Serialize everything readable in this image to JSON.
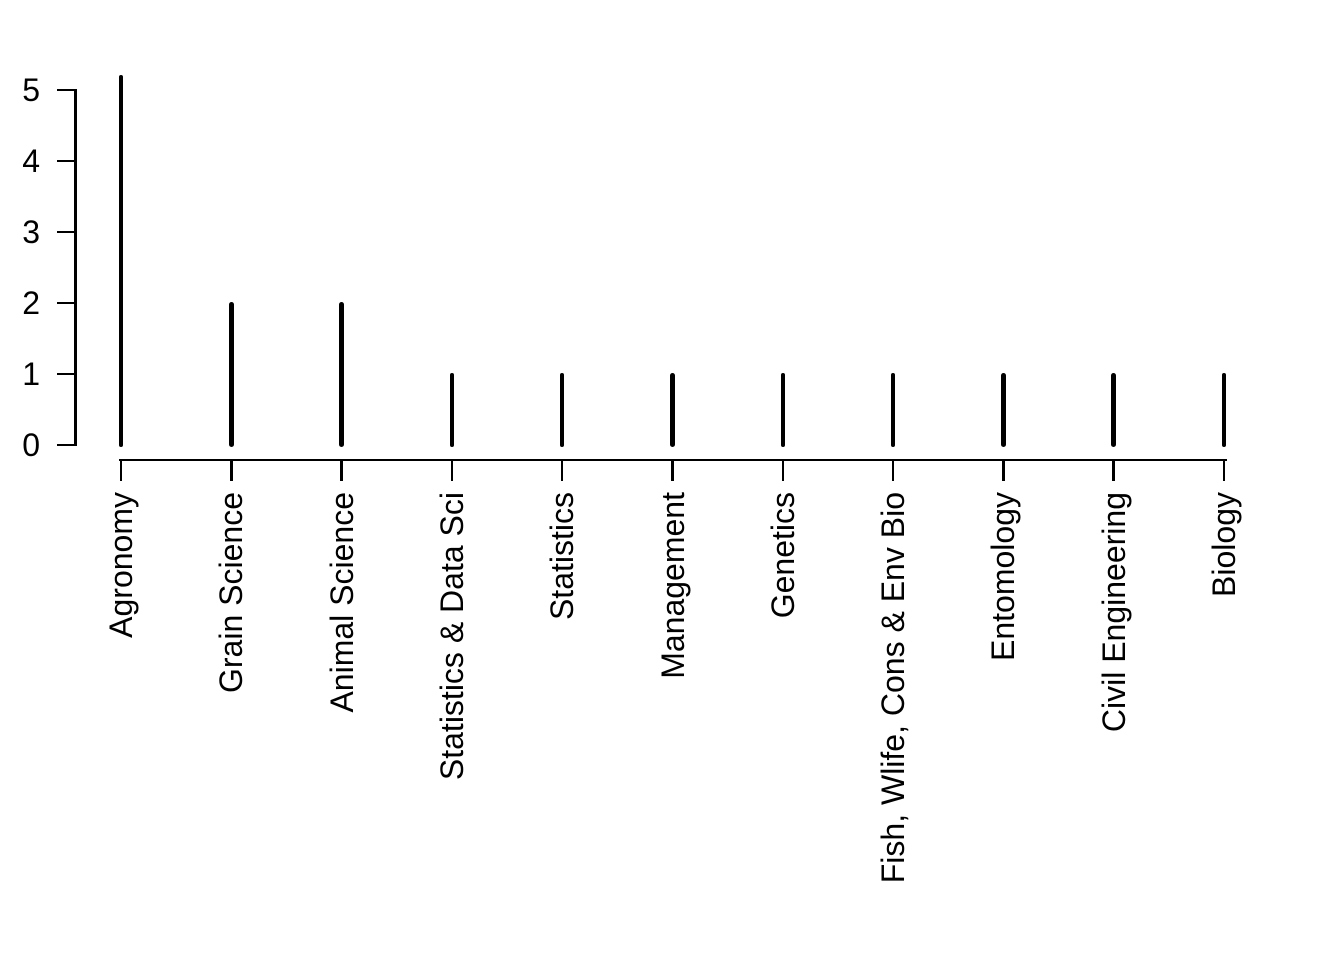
{
  "chart_data": {
    "type": "bar",
    "variant": "spike-plot (R plot of a frequency table, type='h')",
    "title": "",
    "xlabel": "",
    "ylabel": "",
    "categories": [
      "Agronomy",
      "Grain Science",
      "Animal Science",
      "Statistics & Data Sci",
      "Statistics",
      "Management",
      "Genetics",
      "Fish, Wlife, Cons & Env Bio",
      "Entomology",
      "Civil Engineering",
      "Biology"
    ],
    "values": [
      5.2,
      2,
      2,
      1,
      1,
      1,
      1,
      1,
      1,
      1,
      1
    ],
    "yticks": [
      0,
      1,
      2,
      3,
      4,
      5
    ],
    "ylim": [
      0,
      5.4
    ],
    "grid": false,
    "legend": false,
    "x_label_rotation_deg": 90,
    "colors": {
      "ink": "#000000",
      "background": "#ffffff"
    }
  }
}
